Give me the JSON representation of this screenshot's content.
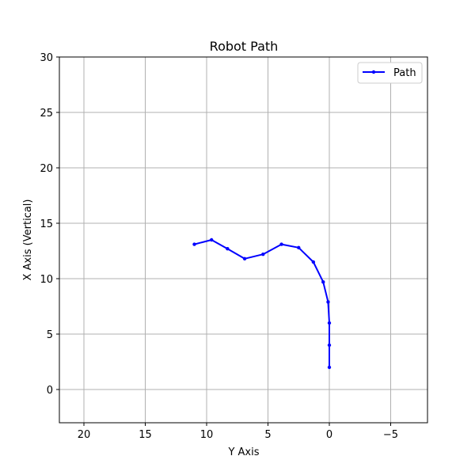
{
  "chart_data": {
    "type": "line",
    "title": "Robot Path",
    "xlabel": "Y Axis",
    "ylabel": "X Axis (Vertical)",
    "xlim": [
      22,
      -8
    ],
    "ylim": [
      -3,
      30
    ],
    "x_inverted": true,
    "grid": true,
    "legend_position": "top-right",
    "x_ticks": [
      20,
      15,
      10,
      5,
      0,
      -5
    ],
    "x_tick_labels": [
      "20",
      "15",
      "10",
      "5",
      "0",
      "−5"
    ],
    "y_ticks": [
      0,
      5,
      10,
      15,
      20,
      25,
      30
    ],
    "y_tick_labels": [
      "0",
      "5",
      "10",
      "15",
      "20",
      "25",
      "30"
    ],
    "series": [
      {
        "name": "Path",
        "color": "#0000ff",
        "marker": "dot",
        "x": [
          0.0,
          0.0,
          0.0,
          0.1,
          0.5,
          1.3,
          2.5,
          3.9,
          5.4,
          6.9,
          8.3,
          9.6,
          11.0
        ],
        "y": [
          2.0,
          4.0,
          6.0,
          7.9,
          9.7,
          11.5,
          12.8,
          13.1,
          12.2,
          11.8,
          12.7,
          13.5,
          13.1
        ]
      }
    ]
  }
}
